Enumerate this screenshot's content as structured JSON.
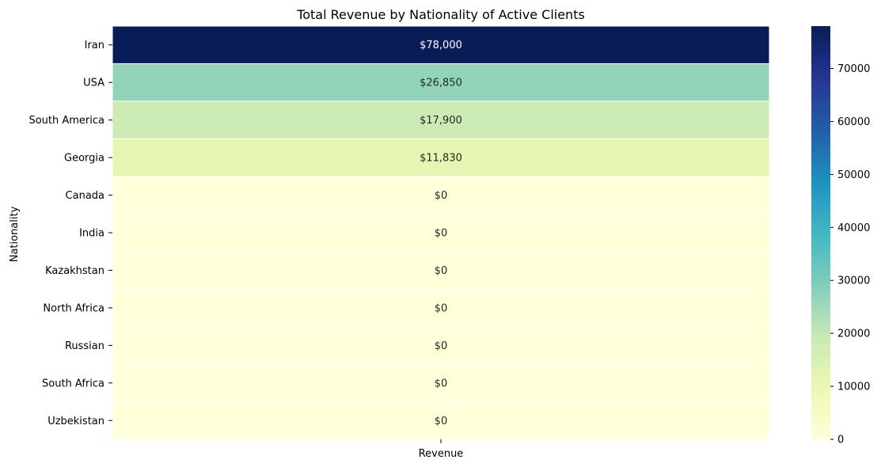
{
  "chart_data": {
    "type": "heatmap",
    "title": "Total Revenue by Nationality of Active Clients",
    "xlabel": "",
    "ylabel": "Nationality",
    "x_categories": [
      "Revenue"
    ],
    "y_categories": [
      "Iran",
      "USA",
      "South America",
      "Georgia",
      "Canada",
      "India",
      "Kazakhstan",
      "North Africa",
      "Russian",
      "South Africa",
      "Uzbekistan"
    ],
    "values": [
      78000,
      26850,
      17900,
      11830,
      0,
      0,
      0,
      0,
      0,
      0,
      0
    ],
    "cell_labels": [
      "$78,000",
      "$26,850",
      "$17,900",
      "$11,830",
      "$0",
      "$0",
      "$0",
      "$0",
      "$0",
      "$0",
      "$0"
    ],
    "colormap": "YlGnBu",
    "colorbar": {
      "range": [
        0,
        78000
      ],
      "ticks": [
        0,
        10000,
        20000,
        30000,
        40000,
        50000,
        60000,
        70000
      ],
      "tick_labels": [
        "0",
        "10000",
        "20000",
        "30000",
        "40000",
        "50000",
        "60000",
        "70000"
      ]
    },
    "colors": {
      "ylgnbu_stops": [
        "#ffffd9",
        "#edf8b1",
        "#c7e9b4",
        "#7fcdbb",
        "#41b6c4",
        "#1d91c0",
        "#225ea8",
        "#253494",
        "#081d58"
      ],
      "dark_text": "#262626",
      "light_text": "#ffffff",
      "cell_border": "#ffffff"
    }
  }
}
